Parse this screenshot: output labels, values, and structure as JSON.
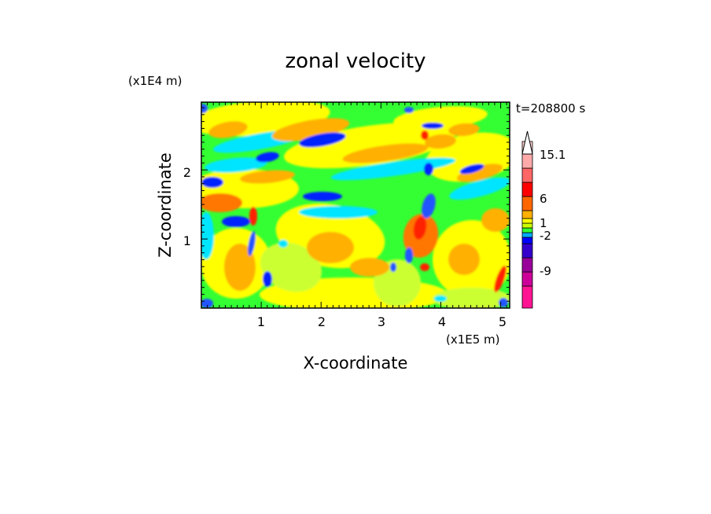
{
  "chart_data": {
    "type": "heatmap",
    "title": "zonal velocity",
    "xlabel": "X-coordinate",
    "ylabel": "Z-coordinate",
    "x_unit": "(x1E5 m)",
    "y_unit": "(x1E4 m)",
    "time_label": "t=208800 s",
    "xlim": [
      0,
      5.15
    ],
    "ylim": [
      0,
      2.98
    ],
    "x_ticks": [
      "1",
      "2",
      "3",
      "4",
      "5"
    ],
    "y_ticks": [
      "1",
      "2"
    ],
    "colorbar": {
      "labels": [
        "15.1",
        "6",
        "1",
        "-2",
        "-9"
      ],
      "colors": [
        "#ff1493",
        "#cc0099",
        "#990099",
        "#3300cc",
        "#0000ff",
        "#00aaff",
        "#33ff33",
        "#ccff00",
        "#ffff00",
        "#ffb000",
        "#ff6600",
        "#ff0000",
        "#ff6666",
        "#ffaaaa",
        "#ffcccc"
      ]
    },
    "field_colors": {
      "deep_blue": "#0020ff",
      "blue": "#2255ff",
      "cyan": "#00e5ff",
      "green": "#33ff33",
      "yellow_green": "#ccff33",
      "yellow": "#ffff00",
      "orange": "#ffb000",
      "dark_orange": "#ff7700",
      "red": "#ff2200",
      "magenta": "#cc00cc"
    }
  }
}
